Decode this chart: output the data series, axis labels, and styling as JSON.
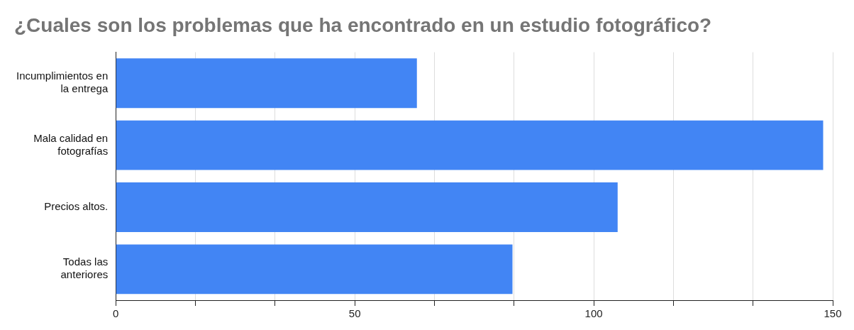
{
  "chart_data": {
    "type": "bar",
    "orientation": "horizontal",
    "title": "¿Cuales son los problemas que ha encontrado en un estudio fotográfico?",
    "categories": [
      "Incumplimientos en la entrega",
      "Mala calidad en fotografías",
      "Precios altos.",
      "Todas las anteriores"
    ],
    "values": [
      63,
      148,
      105,
      83
    ],
    "color": "#4285f4",
    "xlim": [
      0,
      150
    ],
    "xticks": [
      0,
      {
        "value": 16.67,
        "label": null
      },
      {
        "value": 33.33,
        "label": null
      },
      50,
      {
        "value": 66.67,
        "label": null
      },
      {
        "value": 83.33,
        "label": null
      },
      100,
      {
        "value": 116.67,
        "label": null
      },
      {
        "value": 133.33,
        "label": null
      },
      150
    ],
    "grid": "x",
    "legend": false
  }
}
